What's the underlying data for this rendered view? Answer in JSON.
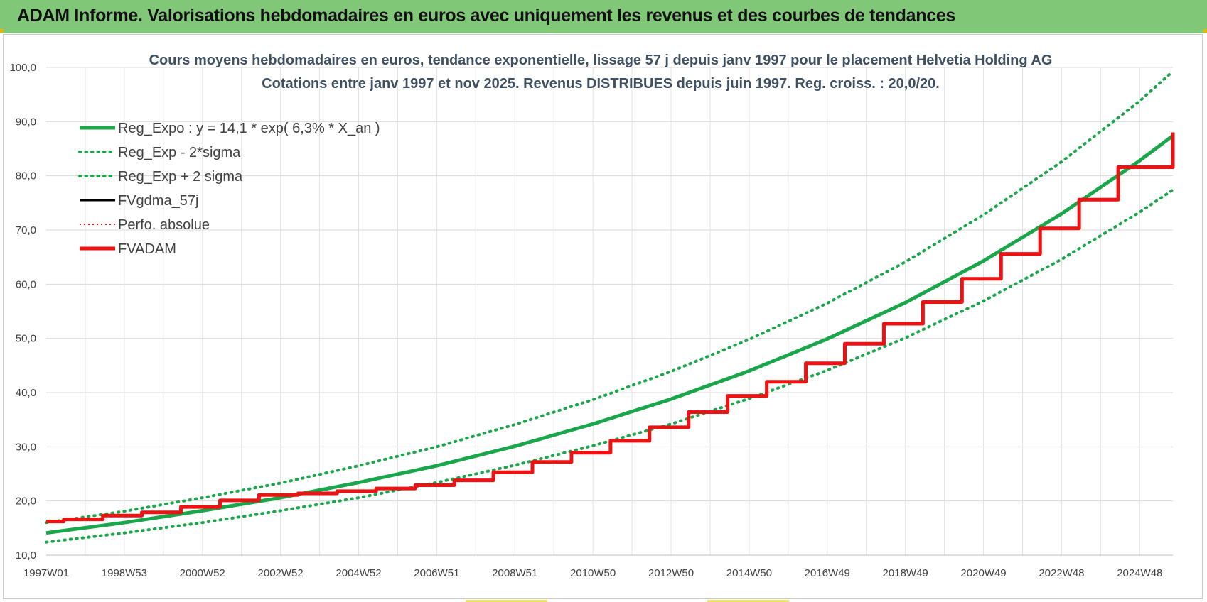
{
  "header": {
    "title": "ADAM Informe. Valorisations hebdomadaires en euros avec uniquement les revenus et des courbes de tendances"
  },
  "chart_data": {
    "type": "line",
    "title": "Cours moyens hebdomadaires en euros, tendance exponentielle, lissage 57 j depuis janv 1997 pour le placement Helvetia Holding AG",
    "subtitle": "Cotations entre janv 1997 et nov 2025. Revenus DISTRIBUES depuis juin 1997. Reg. croiss. : 20,0/20.",
    "xlabel": "",
    "ylabel": "",
    "ylim": [
      10,
      100
    ],
    "xlim": [
      1997.0,
      2025.85
    ],
    "grid": true,
    "legend_position": "top-left",
    "yticks": [
      "10,0",
      "20,0",
      "30,0",
      "40,0",
      "50,0",
      "60,0",
      "70,0",
      "80,0",
      "90,0",
      "100,0"
    ],
    "xtick_labels": [
      {
        "label": "1997W01",
        "x": 1997.0
      },
      {
        "label": "1998W53",
        "x": 1999.0
      },
      {
        "label": "2000W52",
        "x": 2001.0
      },
      {
        "label": "2002W52",
        "x": 2003.0
      },
      {
        "label": "2004W52",
        "x": 2005.0
      },
      {
        "label": "2006W51",
        "x": 2007.0
      },
      {
        "label": "2008W51",
        "x": 2009.0
      },
      {
        "label": "2010W50",
        "x": 2011.0
      },
      {
        "label": "2012W50",
        "x": 2013.0
      },
      {
        "label": "2014W50",
        "x": 2015.0
      },
      {
        "label": "2016W49",
        "x": 2017.0
      },
      {
        "label": "2018W49",
        "x": 2019.0
      },
      {
        "label": "2020W49",
        "x": 2021.0
      },
      {
        "label": "2022W48",
        "x": 2023.0
      },
      {
        "label": "2024W48",
        "x": 2025.0
      }
    ],
    "series": [
      {
        "name": "Reg_Expo : y = 14,1 * exp( 6,3% *  X_an )",
        "color": "#1aa64a",
        "style": "solid",
        "x": [
          1997.0,
          1999.0,
          2001.0,
          2003.0,
          2005.0,
          2007.0,
          2009.0,
          2011.0,
          2013.0,
          2015.0,
          2017.0,
          2019.0,
          2021.0,
          2023.0,
          2025.0,
          2025.85
        ],
        "y": [
          14.1,
          16.0,
          18.2,
          20.6,
          23.4,
          26.5,
          30.1,
          34.2,
          38.8,
          44.0,
          49.9,
          56.6,
          64.3,
          73.0,
          82.8,
          87.4
        ]
      },
      {
        "name": "Reg_Exp - 2*sigma",
        "color": "#1aa64a",
        "style": "dotted",
        "x": [
          1997.0,
          1999.0,
          2001.0,
          2003.0,
          2005.0,
          2007.0,
          2009.0,
          2011.0,
          2013.0,
          2015.0,
          2017.0,
          2019.0,
          2021.0,
          2023.0,
          2025.0,
          2025.85
        ],
        "y": [
          12.4,
          14.1,
          16.0,
          18.2,
          20.6,
          23.4,
          26.6,
          30.2,
          34.2,
          38.9,
          44.1,
          50.1,
          56.9,
          64.6,
          73.3,
          77.4
        ]
      },
      {
        "name": "Reg_Exp + 2 sigma",
        "color": "#1aa64a",
        "style": "dotted",
        "x": [
          1997.0,
          1999.0,
          2001.0,
          2003.0,
          2005.0,
          2007.0,
          2009.0,
          2011.0,
          2013.0,
          2015.0,
          2017.0,
          2019.0,
          2021.0,
          2023.0,
          2025.0,
          2025.85
        ],
        "y": [
          16.0,
          18.1,
          20.6,
          23.3,
          26.5,
          30.0,
          34.1,
          38.7,
          43.9,
          49.8,
          56.5,
          64.1,
          72.8,
          82.6,
          93.8,
          99.3
        ]
      },
      {
        "name": "FVgdma_57j",
        "color": "#000000",
        "style": "solid",
        "x": [
          1997.0,
          1997.45,
          1998.45,
          1999.45,
          2000.45,
          2001.45,
          2002.45,
          2003.45,
          2004.45,
          2005.45,
          2006.45,
          2007.45,
          2008.45,
          2009.45,
          2010.45,
          2011.45,
          2012.45,
          2013.45,
          2014.45,
          2015.45,
          2016.45,
          2017.45,
          2018.45,
          2019.45,
          2020.45,
          2021.45,
          2022.45,
          2023.45,
          2024.45,
          2025.85
        ],
        "y": [
          16.2,
          16.6,
          17.3,
          17.9,
          18.9,
          20.1,
          21.1,
          21.4,
          21.8,
          22.3,
          22.9,
          23.8,
          25.3,
          27.2,
          28.9,
          31.1,
          33.6,
          36.4,
          39.4,
          42.0,
          45.4,
          49.0,
          52.7,
          56.7,
          61.0,
          65.6,
          70.3,
          75.6,
          81.6,
          88.0
        ]
      },
      {
        "name": "Perfo. absolue",
        "color": "#e31a1c",
        "style": "dotted",
        "x": [
          1997.0,
          1997.45,
          1998.45,
          1999.45,
          2000.45,
          2001.45,
          2002.45,
          2003.45,
          2004.45,
          2005.45,
          2006.45,
          2007.45,
          2008.45,
          2009.45,
          2010.45,
          2011.45,
          2012.45,
          2013.45,
          2014.45,
          2015.45,
          2016.45,
          2017.45,
          2018.45,
          2019.45,
          2020.45,
          2021.45,
          2022.45,
          2023.45,
          2024.45,
          2025.85
        ],
        "y": [
          16.2,
          16.6,
          17.3,
          17.9,
          18.9,
          20.1,
          21.1,
          21.4,
          21.8,
          22.3,
          22.9,
          23.8,
          25.3,
          27.2,
          28.9,
          31.1,
          33.6,
          36.4,
          39.4,
          42.0,
          45.4,
          49.0,
          52.7,
          56.7,
          61.0,
          65.6,
          70.3,
          75.6,
          81.6,
          88.0
        ]
      },
      {
        "name": "FVADAM",
        "color": "#ee1111",
        "style": "solid",
        "x": [
          1997.0,
          1997.45,
          1998.45,
          1999.45,
          2000.45,
          2001.45,
          2002.45,
          2003.45,
          2004.45,
          2005.45,
          2006.45,
          2007.45,
          2008.45,
          2009.45,
          2010.45,
          2011.45,
          2012.45,
          2013.45,
          2014.45,
          2015.45,
          2016.45,
          2017.45,
          2018.45,
          2019.45,
          2020.45,
          2021.45,
          2022.45,
          2023.45,
          2024.45,
          2025.85
        ],
        "y": [
          16.2,
          16.6,
          17.3,
          17.9,
          18.9,
          20.1,
          21.1,
          21.4,
          21.8,
          22.3,
          22.9,
          23.8,
          25.3,
          27.2,
          28.9,
          31.1,
          33.6,
          36.4,
          39.4,
          42.0,
          45.4,
          49.0,
          52.7,
          56.7,
          61.0,
          65.6,
          70.3,
          75.6,
          81.6,
          88.0
        ]
      }
    ]
  }
}
